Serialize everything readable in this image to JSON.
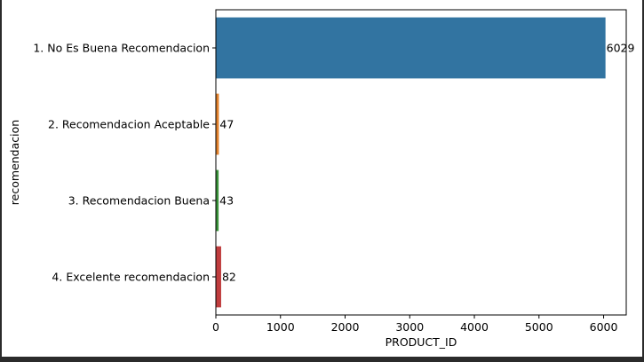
{
  "chart_data": {
    "type": "bar",
    "orientation": "horizontal",
    "categories": [
      "1. No Es Buena Recomendacion",
      "2. Recomendacion Aceptable",
      "3. Recomendacion Buena",
      "4. Excelente recomendacion"
    ],
    "values": [
      6029,
      47,
      43,
      82
    ],
    "data_labels": [
      "6029",
      "47",
      "43",
      "82"
    ],
    "colors": [
      "#3274a1",
      "#e1812c",
      "#3a923a",
      "#c03d3e"
    ],
    "xlabel": "PRODUCT_ID",
    "ylabel": "recomendacion",
    "xlim": [
      0,
      6350
    ],
    "xticks": [
      0,
      1000,
      2000,
      3000,
      4000,
      5000,
      6000
    ],
    "xtick_labels": [
      "0",
      "1000",
      "2000",
      "3000",
      "4000",
      "5000",
      "6000"
    ],
    "grid": false
  }
}
